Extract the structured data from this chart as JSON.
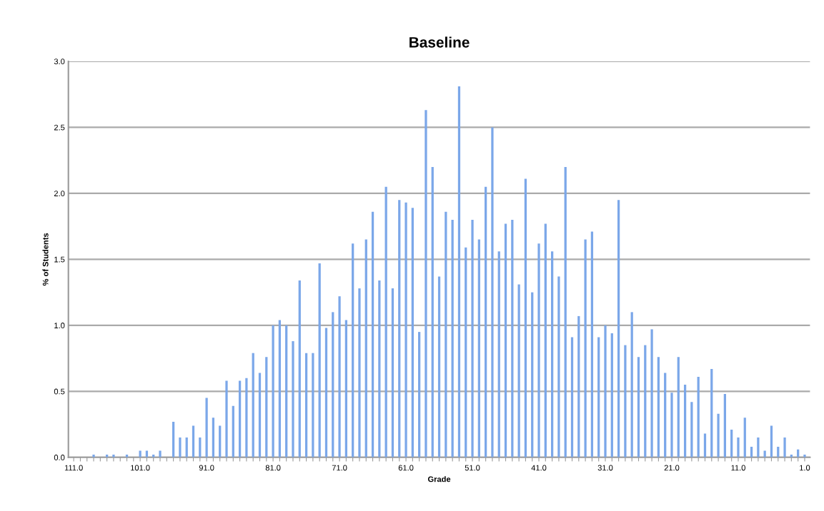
{
  "chart_data": {
    "type": "bar",
    "title": "Baseline",
    "xlabel": "Grade",
    "ylabel": "% of Students",
    "categories": [
      "111.0",
      null,
      null,
      null,
      null,
      null,
      null,
      null,
      null,
      null,
      "101.0",
      null,
      null,
      null,
      null,
      null,
      null,
      null,
      null,
      null,
      "91.0",
      null,
      null,
      null,
      null,
      null,
      null,
      null,
      null,
      null,
      "81.0",
      null,
      null,
      null,
      null,
      null,
      null,
      null,
      null,
      null,
      "71.0",
      null,
      null,
      null,
      null,
      null,
      null,
      null,
      null,
      null,
      "61.0",
      null,
      null,
      null,
      null,
      null,
      null,
      null,
      null,
      null,
      "51.0",
      null,
      null,
      null,
      null,
      null,
      null,
      null,
      null,
      null,
      "41.0",
      null,
      null,
      null,
      null,
      null,
      null,
      null,
      null,
      null,
      "31.0",
      null,
      null,
      null,
      null,
      null,
      null,
      null,
      null,
      null,
      "21.0",
      null,
      null,
      null,
      null,
      null,
      null,
      null,
      null,
      null,
      "11.0",
      null,
      null,
      null,
      null,
      null,
      null,
      null,
      null,
      null,
      "1.0"
    ],
    "values": [
      0,
      0,
      0,
      0.02,
      0,
      0.02,
      0.02,
      0,
      0.02,
      0,
      0.05,
      0.05,
      0.02,
      0.05,
      0,
      0.27,
      0.15,
      0.15,
      0.24,
      0.15,
      0.45,
      0.3,
      0.24,
      0.58,
      0.39,
      0.58,
      0.6,
      0.79,
      0.64,
      0.76,
      1.0,
      1.04,
      1.0,
      0.88,
      1.34,
      0.79,
      0.79,
      1.47,
      0.98,
      1.1,
      1.22,
      1.04,
      1.62,
      1.28,
      1.65,
      1.86,
      1.34,
      2.05,
      1.28,
      1.95,
      1.93,
      1.89,
      0.95,
      2.63,
      2.2,
      1.37,
      1.86,
      1.8,
      2.81,
      1.59,
      1.8,
      1.65,
      2.05,
      2.5,
      1.56,
      1.77,
      1.8,
      1.31,
      2.11,
      1.25,
      1.62,
      1.77,
      1.56,
      1.37,
      2.2,
      0.91,
      1.07,
      1.65,
      1.71,
      0.91,
      1.0,
      0.94,
      1.95,
      0.85,
      1.1,
      0.76,
      0.85,
      0.97,
      0.76,
      0.64,
      0.49,
      0.76,
      0.55,
      0.42,
      0.61,
      0.18,
      0.67,
      0.33,
      0.48,
      0.21,
      0.15,
      0.3,
      0.08,
      0.15,
      0.05,
      0.24,
      0.08,
      0.15,
      0.02,
      0.06,
      0.02
    ],
    "color": "#7ba7e9",
    "ylim": [
      0,
      3.0
    ],
    "yticks": [
      {
        "value": 0,
        "label": "0.0"
      },
      {
        "value": 0.5,
        "label": "0.5"
      },
      {
        "value": 1.0,
        "label": "1.0"
      },
      {
        "value": 1.5,
        "label": "1.5"
      },
      {
        "value": 2.0,
        "label": "2.0"
      },
      {
        "value": 2.5,
        "label": "2.5"
      },
      {
        "value": 3.0,
        "label": "3.0"
      }
    ],
    "grid": "y",
    "legend": false
  }
}
